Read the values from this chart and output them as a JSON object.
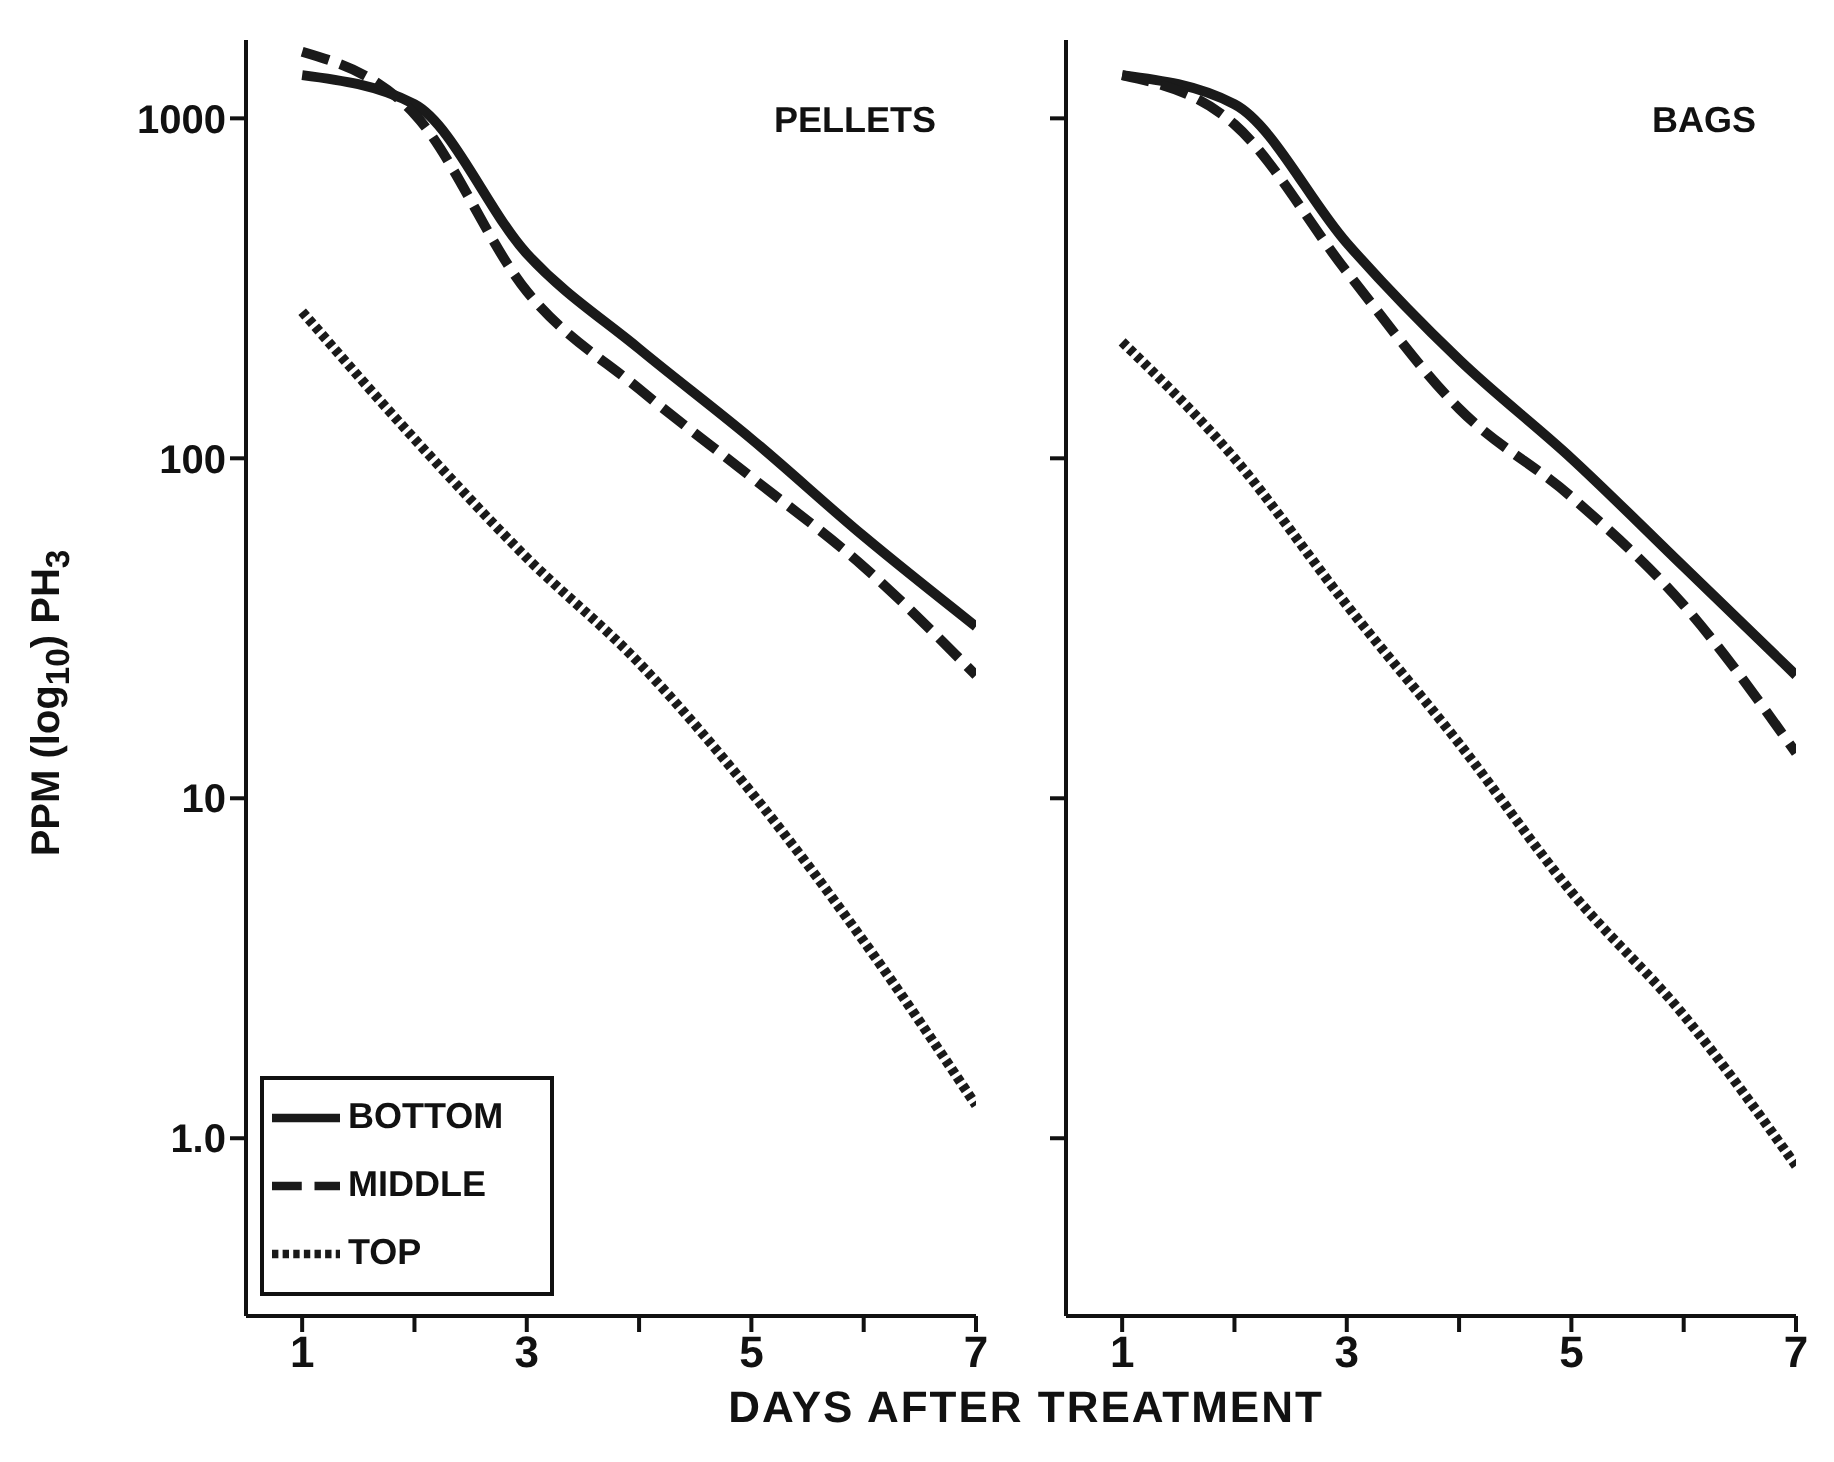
{
  "chart_data": [
    {
      "type": "line",
      "title": "PELLETS",
      "ylabel": "PPM (log$_{10}$) PH$_{3}$",
      "xlabel": "DAYS AFTER TREATMENT",
      "x": [
        1,
        2,
        3,
        4,
        5,
        6,
        7
      ],
      "log": "y",
      "ylim": [
        0.3,
        1700
      ],
      "yticks": [
        {
          "value": 1,
          "label": "1.0"
        },
        10,
        100,
        1000
      ],
      "xlim": [
        0.5,
        7
      ],
      "xticks": [
        1,
        {
          "value": 2,
          "label": null
        },
        3,
        {
          "value": 4,
          "label": null
        },
        5,
        {
          "value": 6,
          "label": null
        },
        7
      ],
      "legend": "bottom left",
      "marker": "none",
      "series": [
        {
          "name": "BOTTOM",
          "color": "#1a1a1a",
          "line_style": "solid",
          "values": [
            1340,
            1100,
            400,
            210,
            114,
            59,
            32
          ]
        },
        {
          "name": "MIDDLE",
          "color": "#1a1a1a",
          "line_style": "dashed",
          "values": [
            1570,
            1030,
            310,
            160,
            88,
            48,
            23
          ]
        },
        {
          "name": "TOP",
          "color": "#1a1a1a",
          "line_style": "dotted",
          "values": [
            270,
            114,
            51,
            25,
            10.4,
            3.8,
            1.25
          ]
        }
      ]
    },
    {
      "type": "line",
      "title": "BAGS",
      "x": [
        1,
        2,
        3,
        4,
        5,
        6,
        7
      ],
      "log": "y",
      "ylim": [
        0.3,
        1700
      ],
      "yticks": [
        1,
        10,
        100,
        1000
      ],
      "xlim": [
        0.5,
        7
      ],
      "xticks": [
        1,
        {
          "value": 2,
          "label": null
        },
        3,
        {
          "value": 4,
          "label": null
        },
        5,
        {
          "value": 6,
          "label": null
        },
        7
      ],
      "legend": false,
      "marker": "none",
      "tick_labels": "x",
      "series": [
        {
          "color": "#1a1a1a",
          "line_style": "solid",
          "values": [
            1340,
            1100,
            430,
            195,
            100,
            48,
            23
          ]
        },
        {
          "color": "#1a1a1a",
          "line_style": "dashed",
          "values": [
            1340,
            960,
            354,
            140,
            77,
            37,
            13.6
          ]
        },
        {
          "color": "#1a1a1a",
          "line_style": "dotted",
          "values": [
            220,
            100,
            37,
            14.5,
            5.3,
            2.3,
            0.83
          ]
        }
      ]
    }
  ]
}
